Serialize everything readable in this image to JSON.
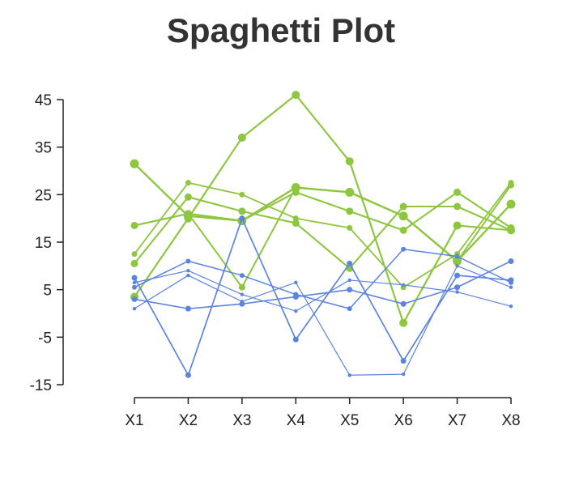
{
  "chart_data": {
    "type": "line",
    "title": "Spaghetti Plot",
    "xlabel": "",
    "ylabel": "",
    "categories": [
      "X1",
      "X2",
      "X3",
      "X4",
      "X5",
      "X6",
      "X7",
      "X8"
    ],
    "ylim": [
      -15,
      45
    ],
    "yticks": [
      45,
      35,
      25,
      15,
      5,
      -5,
      -15
    ],
    "grid": false,
    "legend": "none",
    "colors": {
      "green": "#8dc63f",
      "blue": "#5b84e0"
    },
    "series": [
      {
        "color": "green",
        "values": [
          31.5,
          20.5,
          19.5,
          26.5,
          25.5,
          20.5,
          11.0,
          23.0
        ],
        "marker_size": 5.5,
        "stroke_width": 2.4
      },
      {
        "color": "green",
        "values": [
          10.5,
          24.5,
          21.5,
          19.0,
          9.5,
          22.5,
          22.5,
          17.5
        ],
        "marker_size": 4.5,
        "stroke_width": 2.1
      },
      {
        "color": "green",
        "values": [
          18.5,
          21.0,
          19.5,
          25.5,
          21.5,
          17.5,
          25.5,
          18.0
        ],
        "marker_size": 4.5,
        "stroke_width": 2.1
      },
      {
        "color": "green",
        "values": [
          3.5,
          20.0,
          37.0,
          46.0,
          32.0,
          -2.0,
          18.5,
          17.5
        ],
        "marker_size": 5,
        "stroke_width": 2.2
      },
      {
        "color": "green",
        "values": [
          12.5,
          27.5,
          25.0,
          20.0,
          18.0,
          5.5,
          12.5,
          27.5
        ],
        "marker_size": 3.5,
        "stroke_width": 1.8
      },
      {
        "color": "green",
        "values": [
          18.5,
          21.0,
          5.5,
          26.5,
          25.5,
          20.5,
          11.0,
          27.0
        ],
        "marker_size": 4,
        "stroke_width": 2.0
      },
      {
        "color": "blue",
        "values": [
          7.5,
          -13.0,
          20.0,
          -5.5,
          10.5,
          -10.0,
          8.0,
          7.0
        ],
        "marker_size": 3.5,
        "stroke_width": 1.7
      },
      {
        "color": "blue",
        "values": [
          5.5,
          11.0,
          8.0,
          4.0,
          1.0,
          13.5,
          12.0,
          6.5
        ],
        "marker_size": 3,
        "stroke_width": 1.5
      },
      {
        "color": "blue",
        "values": [
          3.0,
          1.0,
          2.0,
          3.5,
          5.0,
          2.0,
          5.5,
          11.0
        ],
        "marker_size": 3.5,
        "stroke_width": 1.6
      },
      {
        "color": "blue",
        "values": [
          6.5,
          9.0,
          4.0,
          0.5,
          7.0,
          6.0,
          4.5,
          1.5
        ],
        "marker_size": 2.2,
        "stroke_width": 1.2
      },
      {
        "color": "blue",
        "values": [
          1.0,
          8.0,
          2.5,
          6.5,
          -13.0,
          -12.8,
          10.0,
          5.5
        ],
        "marker_size": 2.2,
        "stroke_width": 1.2
      }
    ]
  }
}
